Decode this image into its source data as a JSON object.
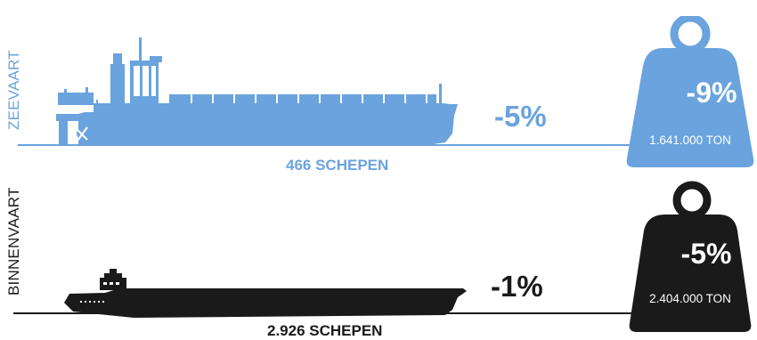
{
  "sea": {
    "label": "ZEEVAART",
    "ship_count": "466 SCHEPEN",
    "ship_change": "-5%",
    "tonnage_change": "-9%",
    "tonnage": "1.641.000 TON",
    "color": "#6aa3dd"
  },
  "inland": {
    "label": "BINNENVAART",
    "ship_count": "2.926 SCHEPEN",
    "ship_change": "-1%",
    "tonnage_change": "-5%",
    "tonnage": "2.404.000 TON",
    "color": "#1a1a1a"
  }
}
